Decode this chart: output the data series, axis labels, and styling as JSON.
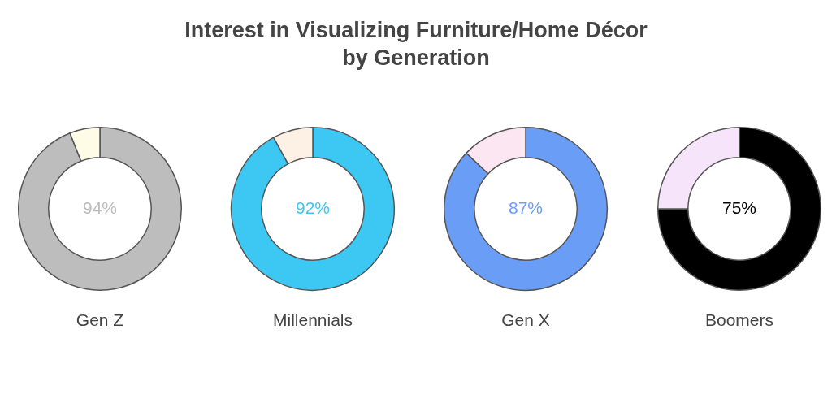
{
  "chart_data": [
    {
      "type": "donut",
      "title": "Interest in Visualizing Furniture/Home Décor by Generation",
      "xlabel": "Gen Z",
      "categories": [
        null,
        null
      ],
      "values": [
        94,
        6
      ],
      "colors": [
        "#bdbdbd",
        "#fefbe6"
      ],
      "value_labels": [
        "94%",
        null
      ]
    },
    {
      "type": "donut",
      "xlabel": "Millennials",
      "categories": [
        null,
        null
      ],
      "values": [
        92,
        8
      ],
      "colors": [
        "#3cc8f3",
        "#fdf1e6"
      ],
      "value_labels": [
        "92%",
        null
      ]
    },
    {
      "type": "donut",
      "xlabel": "Gen X",
      "categories": [
        null,
        null
      ],
      "values": [
        87,
        13
      ],
      "colors": [
        "#6a9ef6",
        "#fce6f1"
      ],
      "value_labels": [
        "87%",
        null
      ]
    },
    {
      "type": "donut",
      "xlabel": "Boomers",
      "categories": [
        null,
        null
      ],
      "values": [
        75,
        25
      ],
      "colors": [
        "#000000",
        "#f6e4fb"
      ],
      "value_labels": [
        "75%",
        null
      ]
    }
  ]
}
